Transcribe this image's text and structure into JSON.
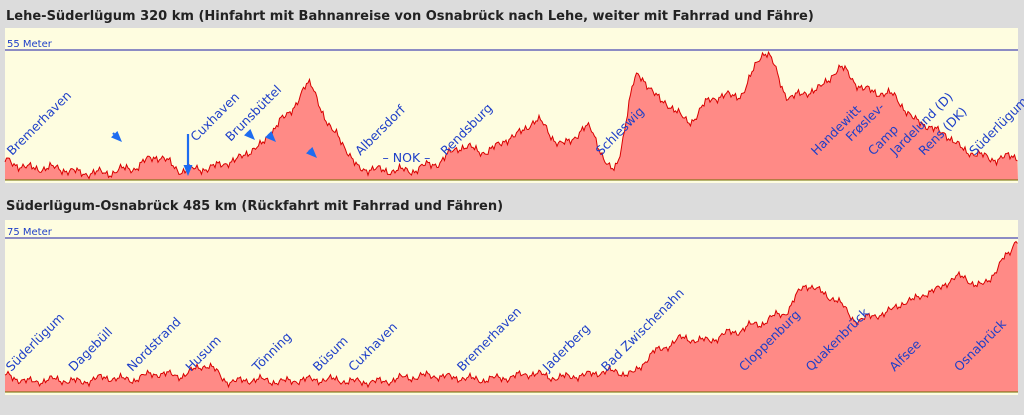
{
  "chart_data": [
    {
      "type": "area",
      "title": "Lehe-Süderlügum 320 km (Hinfahrt mit Bahnanreise von Osnabrück nach Lehe, weiter mit Fahrrad und Fähre)",
      "ylim": [
        0,
        55
      ],
      "ymax_label": "55 Meter",
      "fill_color": "#ff8a86",
      "line_color": "#d80000",
      "x": [
        0,
        8,
        16,
        24,
        32,
        40,
        48,
        56,
        64,
        72,
        80,
        88,
        96,
        104,
        112,
        120,
        128,
        136,
        144,
        152,
        160,
        168,
        176,
        184,
        192,
        200,
        208,
        216,
        224,
        232,
        240,
        248,
        256,
        264,
        272,
        280,
        288,
        296,
        304,
        312,
        320
      ],
      "values": [
        8,
        5,
        5,
        3,
        3,
        5,
        10,
        4,
        5,
        8,
        14,
        26,
        40,
        20,
        5,
        4,
        4,
        7,
        14,
        12,
        18,
        25,
        15,
        22,
        4,
        44,
        33,
        25,
        35,
        36,
        54,
        35,
        38,
        47,
        38,
        36,
        25,
        20,
        12,
        9,
        10
      ],
      "labels": [
        {
          "text": "Bremerhaven",
          "x": 1
        },
        {
          "text": "Cuxhaven",
          "x": 59
        },
        {
          "text": "Brunsbüttel",
          "x": 70
        },
        {
          "text": "Albersdorf",
          "x": 111
        },
        {
          "text": "– NOK –",
          "x": 118
        },
        {
          "text": "Rendsburg",
          "x": 138
        },
        {
          "text": "Schleswig",
          "x": 187
        },
        {
          "text": "Handewitt",
          "x": 255
        },
        {
          "text": "Frøslev-",
          "x": 266
        },
        {
          "text": "Camp",
          "x": 273
        },
        {
          "text": "Jardelund (D)",
          "x": 280
        },
        {
          "text": "Rens (DK)",
          "x": 289
        },
        {
          "text": "Süderlügum",
          "x": 305
        }
      ]
    },
    {
      "type": "area",
      "title": "Süderlügum-Osnabrück 485 km (Rückfahrt mit Fahrrad und Fähren)",
      "ylim": [
        0,
        75
      ],
      "ymax_label": "75 Meter",
      "fill_color": "#ff8a86",
      "line_color": "#d80000",
      "x": [
        0,
        12,
        24,
        36,
        48,
        60,
        72,
        84,
        96,
        108,
        120,
        132,
        144,
        156,
        168,
        180,
        192,
        204,
        216,
        228,
        240,
        252,
        264,
        276,
        288,
        300,
        312,
        324,
        336,
        348,
        360,
        372,
        384,
        396,
        408,
        420,
        432,
        444,
        456,
        468,
        480,
        485
      ],
      "values": [
        8,
        5,
        6,
        5,
        7,
        6,
        9,
        8,
        13,
        5,
        6,
        5,
        6,
        6,
        5,
        5,
        7,
        8,
        7,
        6,
        7,
        9,
        7,
        8,
        10,
        9,
        20,
        26,
        25,
        29,
        33,
        38,
        52,
        46,
        35,
        38,
        44,
        49,
        56,
        52,
        66,
        75
      ],
      "labels": [
        {
          "text": "Süderlügum",
          "x": 1
        },
        {
          "text": "Dagebüll",
          "x": 31
        },
        {
          "text": "Nordstrand",
          "x": 59
        },
        {
          "text": "Husum",
          "x": 87
        },
        {
          "text": "Tönning",
          "x": 119
        },
        {
          "text": "Büsum",
          "x": 148
        },
        {
          "text": "Cuxhaven",
          "x": 165
        },
        {
          "text": "Bremerhaven",
          "x": 217
        },
        {
          "text": "Jaderberg",
          "x": 258
        },
        {
          "text": "Bad Zwischenahn",
          "x": 286
        },
        {
          "text": "Cloppenburg",
          "x": 352
        },
        {
          "text": "Quakenbrück",
          "x": 384
        },
        {
          "text": "Alfsee",
          "x": 424
        },
        {
          "text": "Osnabrück",
          "x": 455
        }
      ]
    }
  ]
}
